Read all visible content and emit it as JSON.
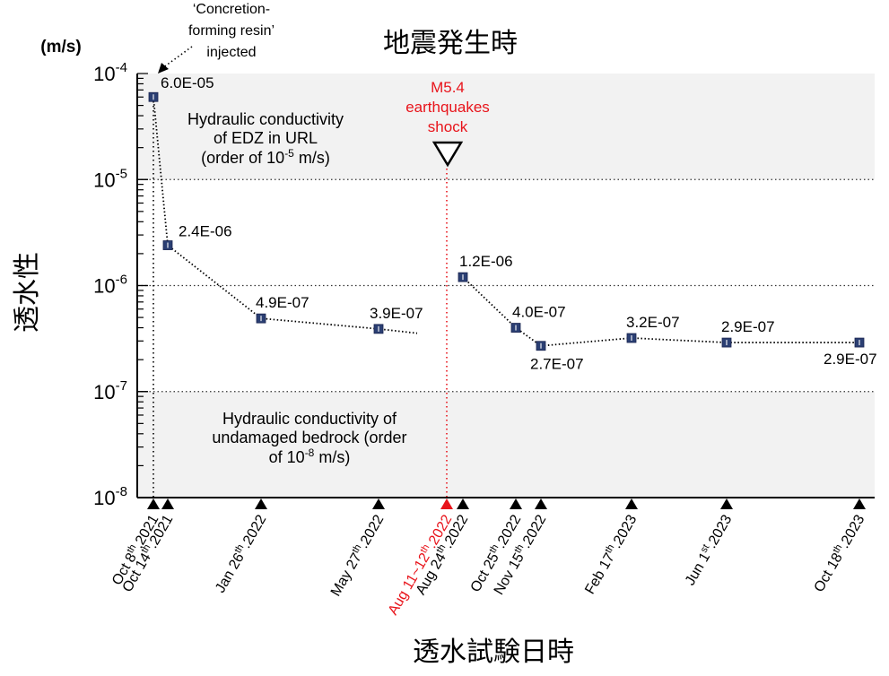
{
  "chart_data": {
    "type": "scatter",
    "title": "地震発生時",
    "xlabel": "透水試験日時",
    "ylabel": "透水性",
    "y_unit": "(m/s)",
    "y_scale": "log",
    "ylim": [
      1e-08,
      0.0001
    ],
    "y_ticks": [
      {
        "value": 1e-08,
        "base": "10",
        "exp": "-8"
      },
      {
        "value": 1e-07,
        "base": "10",
        "exp": "-7"
      },
      {
        "value": 1e-06,
        "base": "10",
        "exp": "-6"
      },
      {
        "value": 1e-05,
        "base": "10",
        "exp": "-5"
      },
      {
        "value": 0.0001,
        "base": "10",
        "exp": "-4"
      }
    ],
    "xlim": [
      "2021-10-08",
      "2023-10-18"
    ],
    "x_ticks": [
      {
        "date": "2021-10-08",
        "pre": "Oct 8",
        "sup": "th",
        "post": ".2021",
        "color": "#000000"
      },
      {
        "date": "2021-10-14",
        "pre": "Oct 14",
        "sup": "th",
        "post": ".2021",
        "color": "#000000"
      },
      {
        "date": "2022-01-26",
        "pre": "Jan 26",
        "sup": "th",
        "post": ".2022",
        "color": "#000000"
      },
      {
        "date": "2022-05-27",
        "pre": "May 27",
        "sup": "th",
        "post": ".2022",
        "color": "#000000"
      },
      {
        "date": "2022-08-11",
        "pre": "Aug 11~12",
        "sup": "th",
        "post": ".2022",
        "color": "#e8141b"
      },
      {
        "date": "2022-08-24",
        "pre": "Aug 24",
        "sup": "th",
        "post": ".2022",
        "color": "#000000"
      },
      {
        "date": "2022-10-25",
        "pre": "Oct 25",
        "sup": "th",
        "post": ".2022",
        "color": "#000000"
      },
      {
        "date": "2022-11-15",
        "pre": "Nov 15",
        "sup": "th",
        "post": ".2022",
        "color": "#000000"
      },
      {
        "date": "2023-02-17",
        "pre": "Feb 17",
        "sup": "th",
        "post": ".2023",
        "color": "#000000"
      },
      {
        "date": "2023-06-01",
        "pre": "Jun 1",
        "sup": "st",
        "post": ".2023",
        "color": "#000000"
      },
      {
        "date": "2023-10-18",
        "pre": "Oct 18",
        "sup": "th",
        "post": ".2023",
        "color": "#000000"
      }
    ],
    "series": [
      {
        "points": [
          {
            "x": "2021-10-08",
            "y": 6e-05,
            "label": "6.0E-05"
          },
          {
            "x": "2021-10-14",
            "y": 2.4e-06,
            "label": "2.4E-06"
          },
          {
            "x": "2022-01-26",
            "y": 4.9e-07,
            "label": "4.9E-07"
          },
          {
            "x": "2022-05-27",
            "y": 3.9e-07,
            "label": "3.9E-07"
          }
        ]
      },
      {
        "points": [
          {
            "x": "2022-08-24",
            "y": 1.2e-06,
            "label": "1.2E-06"
          },
          {
            "x": "2022-10-25",
            "y": 4e-07,
            "label": "4.0E-07"
          },
          {
            "x": "2022-11-15",
            "y": 2.7e-07,
            "label": "2.7E-07"
          },
          {
            "x": "2023-02-17",
            "y": 3.2e-07,
            "label": "3.2E-07"
          },
          {
            "x": "2023-06-01",
            "y": 2.9e-07,
            "label": "2.9E-07"
          },
          {
            "x": "2023-10-18",
            "y": 2.9e-07,
            "label": "2.9E-07"
          }
        ]
      }
    ],
    "shaded_bands": [
      {
        "y_from": 1e-05,
        "y_to": 0.0001,
        "label_lines": [
          "Hydraulic conductivity",
          "of EDZ in URL",
          "(order of 10",
          "-5",
          " m/s)"
        ]
      },
      {
        "y_from": 1e-08,
        "y_to": 1e-07,
        "label_lines": [
          "Hydraulic conductivity of",
          "undamaged bedrock (order",
          "of 10",
          "-8",
          " m/s)"
        ]
      }
    ],
    "grid_y_dotted": [
      1e-07,
      1e-06,
      1e-05
    ],
    "annotations": {
      "resin": [
        "‘Concretion-",
        "forming resin’",
        "injected"
      ],
      "earthquake": [
        "M5.4",
        "earthquakes",
        "shock"
      ]
    },
    "colors": {
      "marker": "#2b3f73",
      "band": "#f2f2f2",
      "earthquake": "#e8141b",
      "line": "#000000"
    }
  }
}
